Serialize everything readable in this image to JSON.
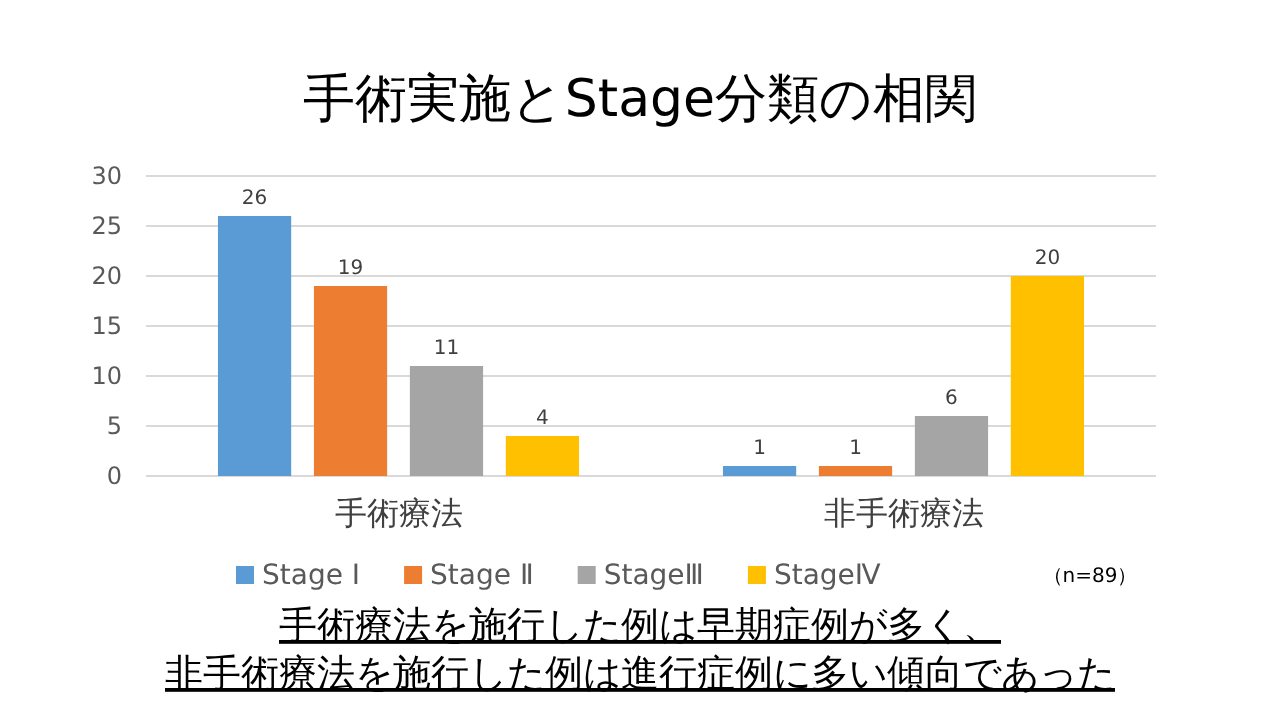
{
  "chart_data": {
    "type": "bar",
    "title": "手術実施とStage分類の相関",
    "categories": [
      "手術療法",
      "非手術療法"
    ],
    "series": [
      {
        "name": "Stage Ⅰ",
        "color": "#5b9bd5",
        "values": [
          26,
          1
        ]
      },
      {
        "name": "Stage Ⅱ",
        "color": "#ed7d31",
        "values": [
          19,
          1
        ]
      },
      {
        "name": "StageⅢ",
        "color": "#a5a5a5",
        "values": [
          11,
          6
        ]
      },
      {
        "name": "StageⅣ",
        "color": "#ffc000",
        "values": [
          4,
          20
        ]
      }
    ],
    "ylim": [
      0,
      30
    ],
    "yticks": [
      0,
      5,
      10,
      15,
      20,
      25,
      30
    ],
    "grid": "y",
    "legend": "bottom",
    "data_labels": true,
    "annotations": [
      "（n=89）",
      "手術療法を施行した例は早期症例が多く、",
      "非手術療法を施行した例は進行症例に多い傾向であった"
    ]
  }
}
